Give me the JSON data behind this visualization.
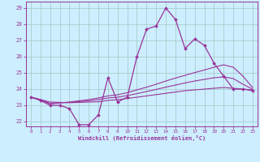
{
  "xlabel": "Windchill (Refroidissement éolien,°C)",
  "xlim": [
    -0.5,
    23.5
  ],
  "ylim": [
    21.7,
    29.4
  ],
  "xticks": [
    0,
    1,
    2,
    3,
    4,
    5,
    6,
    7,
    8,
    9,
    10,
    11,
    12,
    13,
    14,
    15,
    16,
    17,
    18,
    19,
    20,
    21,
    22,
    23
  ],
  "yticks": [
    22,
    23,
    24,
    25,
    26,
    27,
    28,
    29
  ],
  "background_color": "#cceeff",
  "grid_color": "#aacccc",
  "line_color": "#993399",
  "main": [
    23.5,
    23.3,
    23.0,
    23.0,
    22.8,
    21.8,
    21.8,
    22.4,
    24.7,
    23.2,
    23.5,
    26.0,
    27.7,
    27.9,
    29.0,
    28.3,
    26.5,
    27.1,
    26.7,
    25.6,
    24.8,
    24.0,
    24.0,
    23.9
  ],
  "line1": [
    23.5,
    23.35,
    23.2,
    23.18,
    23.16,
    23.18,
    23.2,
    23.22,
    23.3,
    23.35,
    23.42,
    23.5,
    23.58,
    23.66,
    23.74,
    23.82,
    23.9,
    23.95,
    24.0,
    24.05,
    24.1,
    24.05,
    24.0,
    23.95
  ],
  "line2": [
    23.5,
    23.35,
    23.1,
    23.15,
    23.18,
    23.22,
    23.28,
    23.35,
    23.45,
    23.5,
    23.6,
    23.72,
    23.85,
    23.98,
    24.12,
    24.25,
    24.38,
    24.5,
    24.6,
    24.7,
    24.75,
    24.65,
    24.3,
    24.0
  ],
  "line3": [
    23.5,
    23.35,
    23.1,
    23.15,
    23.2,
    23.28,
    23.35,
    23.45,
    23.58,
    23.65,
    23.78,
    23.95,
    24.12,
    24.3,
    24.5,
    24.68,
    24.85,
    25.02,
    25.18,
    25.35,
    25.5,
    25.35,
    24.8,
    24.1
  ]
}
